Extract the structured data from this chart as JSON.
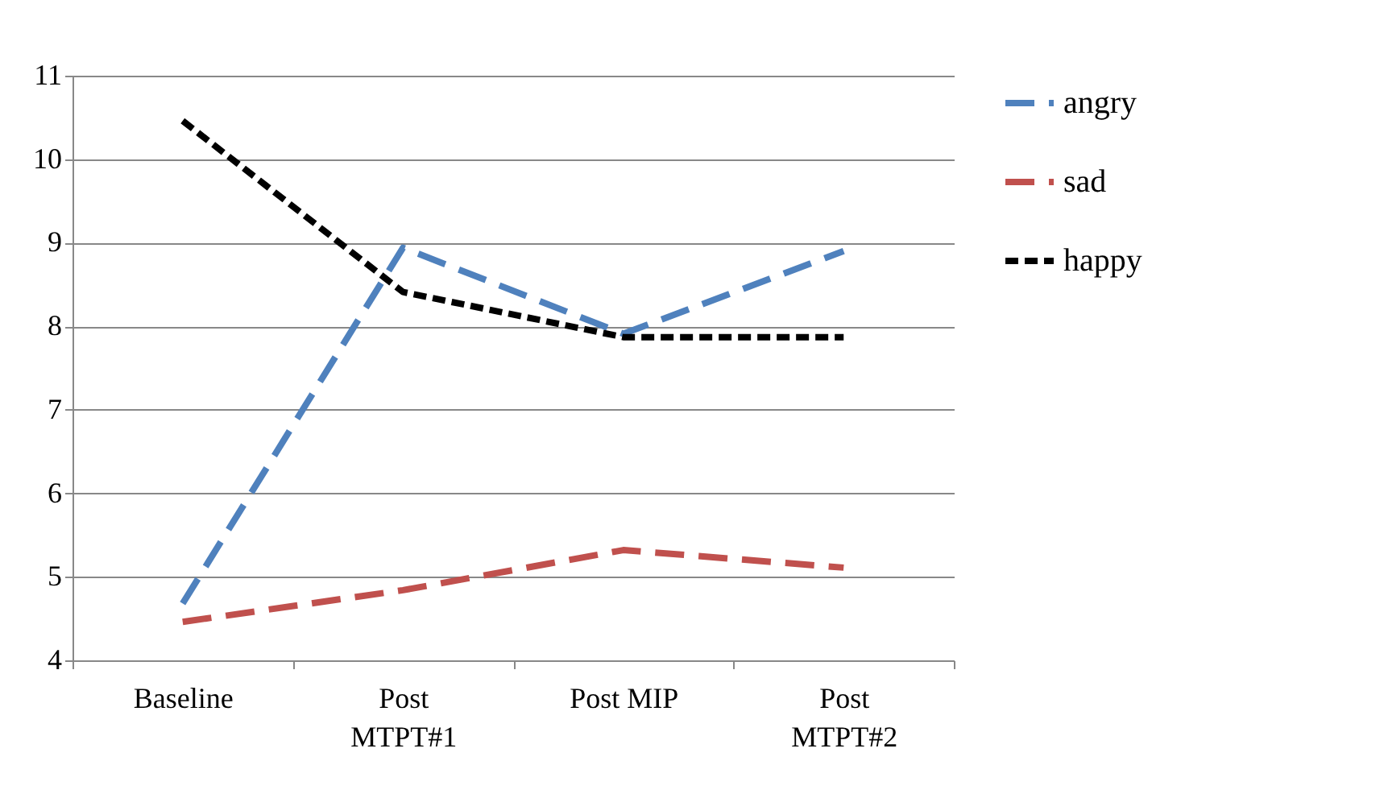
{
  "chart_data": {
    "type": "line",
    "categories": [
      "Baseline",
      "Post MTPT#1",
      "Post MIP",
      "Post MTPT#2"
    ],
    "series": [
      {
        "name": "angry",
        "color": "#4f81bd",
        "line_style": "dashed",
        "values": [
          4.68,
          8.94,
          7.91,
          8.9
        ]
      },
      {
        "name": "sad",
        "color": "#c0504d",
        "line_style": "dashed",
        "values": [
          4.46,
          4.84,
          5.32,
          5.11
        ]
      },
      {
        "name": "happy",
        "color": "#000000",
        "line_style": "dotted",
        "values": [
          10.46,
          8.41,
          7.87,
          7.87
        ]
      }
    ],
    "ylim": [
      4,
      11
    ],
    "yticks": [
      4,
      5,
      6,
      7,
      8,
      9,
      10,
      11
    ],
    "grid": "y",
    "legend": "right",
    "marker": "none"
  }
}
